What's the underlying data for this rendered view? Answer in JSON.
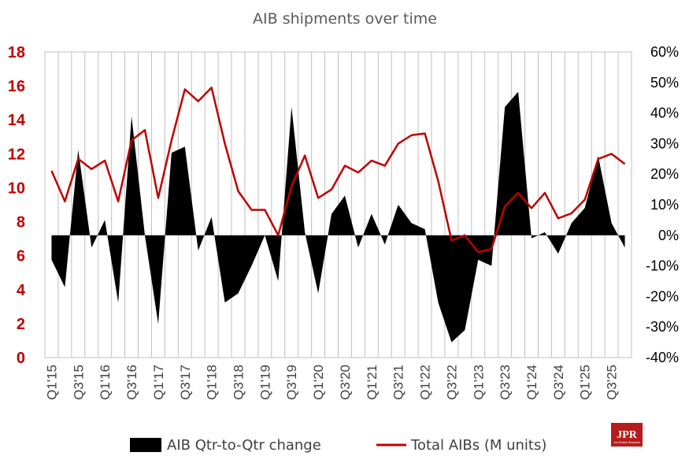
{
  "colors": {
    "line": "#c00000",
    "area": "#000000",
    "grid": "#bfbfbf",
    "left_axis_text": "#c00000",
    "logo_bg": "#b71c1c"
  },
  "logo": {
    "text": "JPR",
    "subtext": "Jon Peddie Research",
    "icon": "jpr-logo"
  },
  "chart_data": {
    "type": "line+area",
    "title": "AIB shipments over time",
    "x": [
      "Q1'15",
      "Q2'15",
      "Q3'15",
      "Q4'15",
      "Q1'16",
      "Q2'16",
      "Q3'16",
      "Q4'16",
      "Q1'17",
      "Q2'17",
      "Q3'17",
      "Q4'17",
      "Q1'18",
      "Q2'18",
      "Q3'18",
      "Q4'18",
      "Q1'19",
      "Q2'19",
      "Q3'19",
      "Q4'19",
      "Q1'20",
      "Q2'20",
      "Q3'20",
      "Q4'20",
      "Q1'21",
      "Q2'21",
      "Q3'21",
      "Q4'21",
      "Q1'22",
      "Q2'22",
      "Q3'22",
      "Q4'22",
      "Q1'23",
      "Q2'23",
      "Q3'23",
      "Q4'23",
      "Q1'24",
      "Q2'24",
      "Q3'24",
      "Q4'24",
      "Q1'25",
      "Q2'25",
      "Q3'25",
      "Q4'25"
    ],
    "x_tick_labels": [
      "Q1'15",
      "Q3'15",
      "Q1'16",
      "Q3'16",
      "Q1'17",
      "Q3'17",
      "Q1'18",
      "Q3'18",
      "Q1'19",
      "Q3'19",
      "Q1'20",
      "Q3'20",
      "Q1'21",
      "Q3'21",
      "Q1'22",
      "Q3'22",
      "Q1'23",
      "Q3'23",
      "Q1'24",
      "Q3'24",
      "Q1'25",
      "Q3'25"
    ],
    "left_axis": {
      "ylim": [
        0,
        18
      ],
      "ticks": [
        "0",
        "2",
        "4",
        "6",
        "8",
        "10",
        "12",
        "14",
        "16",
        "18"
      ]
    },
    "right_axis": {
      "ylim": [
        -40,
        60
      ],
      "ticks": [
        "-40%",
        "-30%",
        "-20%",
        "-10%",
        "0%",
        "10%",
        "20%",
        "30%",
        "40%",
        "50%",
        "60%"
      ]
    },
    "grid": "vertical",
    "legend_position": "bottom",
    "series": [
      {
        "name": "AIB Qtr-to-Qtr change",
        "type": "area",
        "axis": "right",
        "unit": "%",
        "values": [
          -8,
          -17,
          28,
          -4,
          5,
          -22,
          39,
          0,
          -29,
          27,
          29,
          -5,
          6,
          -22,
          -19,
          -10,
          0,
          -15,
          42,
          1,
          -19,
          7,
          13,
          -4,
          7,
          -3,
          10,
          4,
          2,
          -22,
          -35,
          -31,
          -8,
          -10,
          42,
          47,
          -1,
          1,
          -6,
          4,
          9,
          26,
          4,
          -4
        ]
      },
      {
        "name": "Total AIBs (M units)",
        "type": "line",
        "axis": "left",
        "unit": "M units",
        "values": [
          11.0,
          9.2,
          11.7,
          11.1,
          11.6,
          9.2,
          12.8,
          13.4,
          9.4,
          12.8,
          15.8,
          15.1,
          15.9,
          12.6,
          9.8,
          8.7,
          8.7,
          7.2,
          10.1,
          11.9,
          9.4,
          9.9,
          11.3,
          10.9,
          11.6,
          11.3,
          12.6,
          13.1,
          13.2,
          10.4,
          6.9,
          7.2,
          6.2,
          6.4,
          8.9,
          9.7,
          8.8,
          9.7,
          8.2,
          8.5,
          9.3,
          11.7,
          12.0,
          11.4
        ]
      }
    ]
  }
}
